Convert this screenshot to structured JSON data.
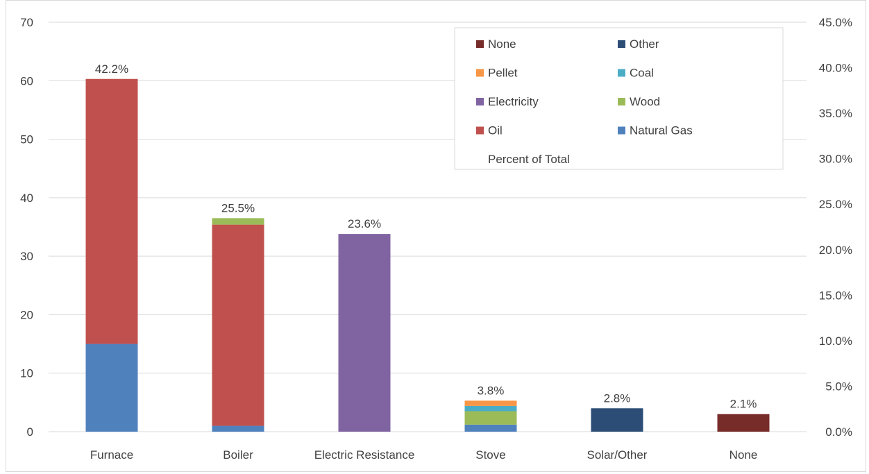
{
  "chart_data": {
    "type": "bar",
    "stacked": true,
    "categories": [
      "Furnace",
      "Boiler",
      "Electric Resistance",
      "Stove",
      "Solar/Other",
      "None"
    ],
    "series": [
      {
        "name": "Natural Gas",
        "color": "#4f81bd",
        "values": [
          15,
          1,
          0,
          1.2,
          0,
          0
        ]
      },
      {
        "name": "Oil",
        "color": "#c0504d",
        "values": [
          45.3,
          34.4,
          0,
          0,
          0,
          0
        ]
      },
      {
        "name": "Wood",
        "color": "#9bbb59",
        "values": [
          0,
          1.1,
          0,
          2.3,
          0,
          0
        ]
      },
      {
        "name": "Electricity",
        "color": "#8064a2",
        "values": [
          0,
          0,
          33.8,
          0,
          0,
          0
        ]
      },
      {
        "name": "Coal",
        "color": "#4bacc6",
        "values": [
          0,
          0,
          0,
          0.9,
          0,
          0
        ]
      },
      {
        "name": "Pellet",
        "color": "#f79646",
        "values": [
          0,
          0,
          0,
          0.9,
          0,
          0
        ]
      },
      {
        "name": "Other",
        "color": "#2c4d75",
        "values": [
          0,
          0,
          0,
          0,
          4,
          0
        ]
      },
      {
        "name": "None",
        "color": "#772c2a",
        "values": [
          0,
          0,
          0,
          0,
          0,
          3
        ]
      }
    ],
    "percent_of_total": {
      "name": "Percent of Total",
      "labels": [
        "42.2%",
        "25.5%",
        "23.6%",
        "3.8%",
        "2.8%",
        "2.1%"
      ]
    },
    "y_left": {
      "min": 0,
      "max": 70,
      "ticks": [
        "0",
        "10",
        "20",
        "30",
        "40",
        "50",
        "60",
        "70"
      ]
    },
    "y_right": {
      "ticks": [
        "0.0%",
        "5.0%",
        "10.0%",
        "15.0%",
        "20.0%",
        "25.0%",
        "30.0%",
        "35.0%",
        "40.0%",
        "45.0%"
      ]
    },
    "legend": {
      "placement": "top-right",
      "items": [
        {
          "name": "None",
          "color": "#772c2a"
        },
        {
          "name": "Other",
          "color": "#2c4d75"
        },
        {
          "name": "Pellet",
          "color": "#f79646"
        },
        {
          "name": "Coal",
          "color": "#4bacc6"
        },
        {
          "name": "Electricity",
          "color": "#8064a2"
        },
        {
          "name": "Wood",
          "color": "#9bbb59"
        },
        {
          "name": "Oil",
          "color": "#c0504d"
        },
        {
          "name": "Natural Gas",
          "color": "#4f81bd"
        },
        {
          "name": "Percent of Total",
          "color": ""
        }
      ]
    },
    "gridlines": true
  }
}
